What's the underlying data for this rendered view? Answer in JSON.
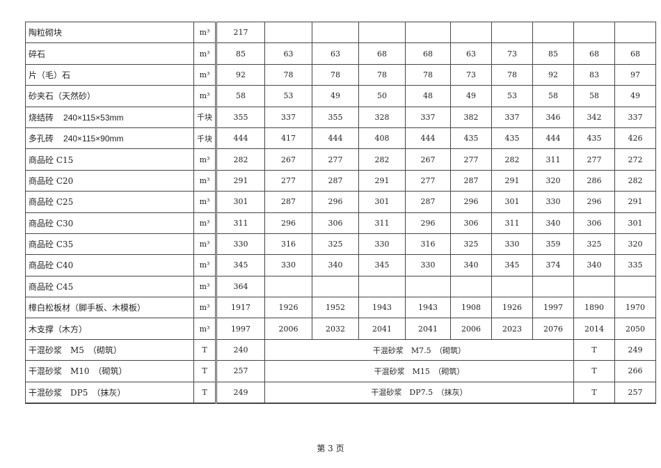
{
  "rows": [
    {
      "name": "陶粒砌块",
      "unit": "m³",
      "values": [
        "217",
        "",
        "",
        "",
        "",
        "",
        "",
        "",
        "",
        ""
      ]
    },
    {
      "name": "碎石",
      "unit": "m³",
      "values": [
        "85",
        "63",
        "63",
        "68",
        "68",
        "63",
        "73",
        "85",
        "68",
        "68"
      ]
    },
    {
      "name": "片（毛）石",
      "unit": "m³",
      "values": [
        "92",
        "78",
        "78",
        "78",
        "78",
        "73",
        "78",
        "92",
        "83",
        "97"
      ]
    },
    {
      "name": "砂夹石（天然砂）",
      "unit": "m³",
      "values": [
        "58",
        "53",
        "49",
        "50",
        "48",
        "49",
        "53",
        "58",
        "58",
        "49"
      ]
    },
    {
      "name": "烧结砖",
      "spec": "240×115×53mm",
      "unit": "千块",
      "values": [
        "355",
        "337",
        "355",
        "328",
        "337",
        "382",
        "337",
        "346",
        "342",
        "337"
      ]
    },
    {
      "name": "多孔砖",
      "spec": "240×115×90mm",
      "unit": "千块",
      "values": [
        "444",
        "417",
        "444",
        "408",
        "444",
        "435",
        "435",
        "444",
        "435",
        "426"
      ]
    },
    {
      "name": "商品砼 C15",
      "unit": "m³",
      "values": [
        "282",
        "267",
        "277",
        "282",
        "267",
        "277",
        "282",
        "311",
        "277",
        "272"
      ]
    },
    {
      "name": "商品砼 C20",
      "unit": "m³",
      "values": [
        "291",
        "277",
        "287",
        "291",
        "277",
        "287",
        "291",
        "320",
        "286",
        "282"
      ]
    },
    {
      "name": "商品砼 C25",
      "unit": "m³",
      "values": [
        "301",
        "287",
        "296",
        "301",
        "287",
        "296",
        "301",
        "330",
        "296",
        "291"
      ]
    },
    {
      "name": "商品砼 C30",
      "unit": "m³",
      "values": [
        "311",
        "296",
        "306",
        "311",
        "296",
        "306",
        "311",
        "340",
        "306",
        "301"
      ]
    },
    {
      "name": "商品砼 C35",
      "unit": "m³",
      "values": [
        "330",
        "316",
        "325",
        "330",
        "316",
        "325",
        "330",
        "359",
        "325",
        "320"
      ]
    },
    {
      "name": "商品砼 C40",
      "unit": "m³",
      "values": [
        "345",
        "330",
        "340",
        "345",
        "330",
        "340",
        "345",
        "374",
        "340",
        "335"
      ]
    },
    {
      "name": "商品砼 C45",
      "unit": "m³",
      "values": [
        "364",
        "",
        "",
        "",
        "",
        "",
        "",
        "",
        "",
        ""
      ]
    },
    {
      "name": "樟白松板材（脚手板、木模板）",
      "unit": "m³",
      "values": [
        "1917",
        "1926",
        "1952",
        "1943",
        "1943",
        "1908",
        "1926",
        "1997",
        "1890",
        "1970"
      ]
    },
    {
      "name": "木支撑（木方）",
      "unit": "m³",
      "values": [
        "1997",
        "2006",
        "2032",
        "2041",
        "2041",
        "2006",
        "2023",
        "2076",
        "2014",
        "2050"
      ]
    }
  ],
  "pair_rows": [
    {
      "name": "干混砂浆　M5　（砌筑）",
      "unit": "T",
      "value": "240",
      "name2": "干混砂浆　M7.5　（砌筑）",
      "unit2": "T",
      "value2": "249"
    },
    {
      "name": "干混砂浆　M10　（砌筑）",
      "unit": "T",
      "value": "257",
      "name2": "干混砂浆　M15　（砌筑）",
      "unit2": "T",
      "value2": "266"
    },
    {
      "name": "干混砂浆　DP5　（抹灰）",
      "unit": "T",
      "value": "249",
      "name2": "干混砂浆　DP7.5　（抹灰）",
      "unit2": "T",
      "value2": "257"
    }
  ],
  "footer": {
    "page_label": "第 3 页"
  }
}
